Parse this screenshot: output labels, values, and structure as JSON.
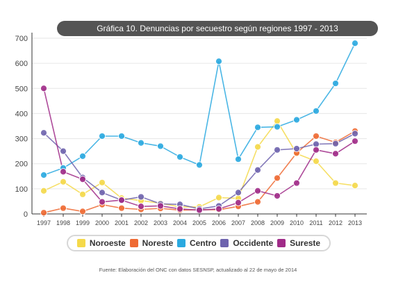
{
  "chart_data": {
    "type": "line",
    "title": "Gráfica 10. Denuncias por secuestro según regiones 1997 - 2013",
    "source": "Fuente: Elaboración del ONC con datos SESNSP, actualizado al 22 de mayo de 2014",
    "categories": [
      "1997",
      "1998",
      "1999",
      "2000",
      "2001",
      "2002",
      "2003",
      "2004",
      "2005",
      "2006",
      "2007",
      "2008",
      "2009",
      "2010",
      "2011",
      "2012",
      "2013"
    ],
    "ylim": [
      0,
      700
    ],
    "yticks": [
      0,
      100,
      200,
      300,
      400,
      500,
      600,
      700
    ],
    "grid": true,
    "legend_position": "bottom",
    "series": [
      {
        "name": "Noroeste",
        "color": "#F5D94A",
        "values": [
          92,
          128,
          78,
          125,
          63,
          53,
          43,
          28,
          28,
          65,
          62,
          267,
          370,
          240,
          210,
          123,
          113
        ]
      },
      {
        "name": "Noreste",
        "color": "#EF6A33",
        "values": [
          5,
          23,
          10,
          37,
          23,
          18,
          22,
          15,
          17,
          17,
          30,
          48,
          143,
          243,
          310,
          285,
          330
        ]
      },
      {
        "name": "Centro",
        "color": "#2AA9E0",
        "values": [
          155,
          183,
          230,
          310,
          310,
          283,
          270,
          227,
          195,
          608,
          218,
          345,
          347,
          375,
          410,
          520,
          680
        ]
      },
      {
        "name": "Occidente",
        "color": "#6E63AE",
        "values": [
          323,
          250,
          145,
          85,
          55,
          68,
          40,
          38,
          20,
          32,
          85,
          175,
          255,
          260,
          278,
          280,
          320
        ]
      },
      {
        "name": "Sureste",
        "color": "#A02B88",
        "values": [
          500,
          168,
          138,
          48,
          55,
          30,
          32,
          20,
          15,
          20,
          45,
          92,
          72,
          123,
          255,
          240,
          290
        ]
      }
    ]
  }
}
